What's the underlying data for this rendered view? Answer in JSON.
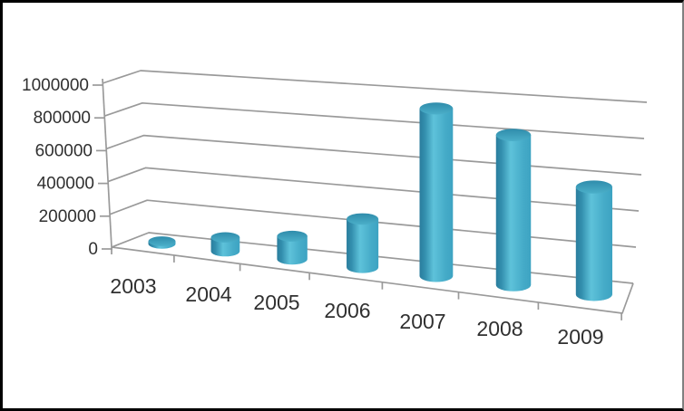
{
  "chart_data": {
    "type": "bar",
    "variant": "3d-cylinder",
    "title": "",
    "xlabel": "",
    "ylabel": "",
    "categories": [
      "2003",
      "2004",
      "2005",
      "2006",
      "2007",
      "2008",
      "2009"
    ],
    "values": [
      15000,
      80000,
      130000,
      270000,
      920000,
      810000,
      570000
    ],
    "ylim": [
      0,
      1000000
    ],
    "ytick_interval": 200000,
    "ytick_labels": [
      "0",
      "200000",
      "400000",
      "600000",
      "800000",
      "1000000"
    ],
    "grid": true,
    "legend_position": "none",
    "colors": {
      "cylinder_edge_dark": "#2a7d9d",
      "cylinder_mid_light": "#5ec2da",
      "cylinder_right": "#3da3c2",
      "cylinder_top_back": "#2f8cab",
      "cylinder_top_front": "#4bafc9",
      "gridline": "#9a9a9a",
      "axis_text": "#303030",
      "background": "#ffffff"
    }
  }
}
